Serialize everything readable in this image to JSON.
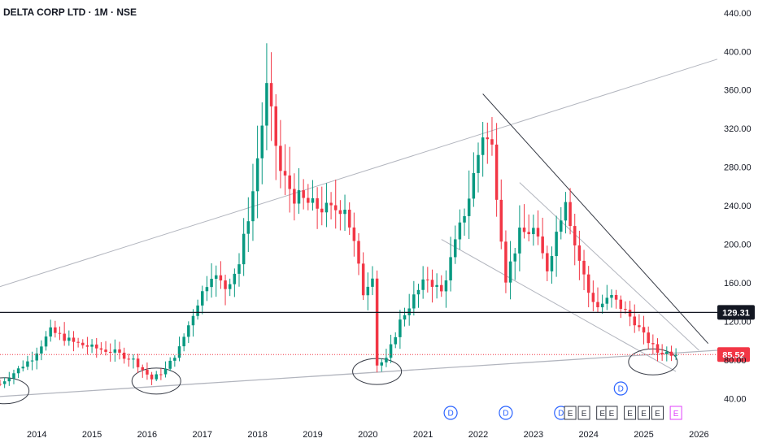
{
  "chart_data": {
    "type": "candlestick",
    "title": "DELTA CORP LTD · 1M · NSE",
    "symbol": "DELTA CORP LTD",
    "interval": "1M",
    "exchange": "NSE",
    "price_axis_labels": [
      "440.00",
      "400.00",
      "360.00",
      "320.00",
      "280.00",
      "240.00",
      "200.00",
      "160.00",
      "120.00",
      "80.00",
      "40.00"
    ],
    "price_axis_values": [
      440,
      400,
      360,
      320,
      280,
      240,
      200,
      160,
      120,
      80,
      40
    ],
    "ylim": [
      20,
      450
    ],
    "time_axis_labels": [
      "2014",
      "2015",
      "2016",
      "2017",
      "2018",
      "2019",
      "2020",
      "2021",
      "2022",
      "2023",
      "2024",
      "2025",
      "2026"
    ],
    "xlim": [
      "2013-05-01",
      "2026-05-01"
    ],
    "horizontal_level": {
      "value": 129.31,
      "label": "129.31",
      "color": "#131722"
    },
    "last_price": {
      "value": 85.52,
      "label": "85.52",
      "color": "#f23645"
    },
    "colors": {
      "up": "#089981",
      "down": "#f23645",
      "trendline": "#b2b5be",
      "dark_trendline": "#363a45",
      "dividend": "#2962ff",
      "earnings": "#363a45",
      "earnings_upcoming": "#e040fb"
    },
    "anchors": [
      [
        "2013-05",
        55
      ],
      [
        "2013-12",
        82
      ],
      [
        "2014-04",
        110
      ],
      [
        "2014-09",
        98
      ],
      [
        "2015-01",
        93
      ],
      [
        "2015-06",
        88
      ],
      [
        "2015-10",
        80
      ],
      [
        "2016-02",
        60
      ],
      [
        "2016-05",
        70
      ],
      [
        "2016-08",
        92
      ],
      [
        "2016-12",
        140
      ],
      [
        "2017-03",
        170
      ],
      [
        "2017-06",
        155
      ],
      [
        "2017-09",
        180
      ],
      [
        "2017-12",
        255
      ],
      [
        "2018-03",
        360
      ],
      [
        "2018-06",
        275
      ],
      [
        "2018-09",
        250
      ],
      [
        "2019-01",
        240
      ],
      [
        "2019-05",
        235
      ],
      [
        "2019-08",
        240
      ],
      [
        "2019-10",
        200
      ],
      [
        "2019-12",
        150
      ],
      [
        "2020-02",
        170
      ],
      [
        "2020-03",
        75
      ],
      [
        "2020-05",
        80
      ],
      [
        "2020-08",
        120
      ],
      [
        "2020-11",
        145
      ],
      [
        "2021-02",
        165
      ],
      [
        "2021-05",
        150
      ],
      [
        "2021-08",
        200
      ],
      [
        "2021-11",
        250
      ],
      [
        "2022-02",
        315
      ],
      [
        "2022-04",
        300
      ],
      [
        "2022-07",
        165
      ],
      [
        "2022-10",
        210
      ],
      [
        "2023-01",
        215
      ],
      [
        "2023-04",
        175
      ],
      [
        "2023-08",
        250
      ],
      [
        "2023-10",
        200
      ],
      [
        "2024-01",
        150
      ],
      [
        "2024-03",
        135
      ],
      [
        "2024-06",
        145
      ],
      [
        "2024-09",
        130
      ],
      [
        "2024-11",
        120
      ],
      [
        "2025-01",
        105
      ],
      [
        "2025-04",
        88
      ],
      [
        "2025-06",
        88
      ],
      [
        "2025-08",
        85.52
      ]
    ],
    "trendlines": [
      {
        "from": [
          "2013-05",
          42
        ],
        "to": [
          "2026-05",
          90
        ]
      },
      {
        "from": [
          "2013-05",
          156
        ],
        "to": [
          "2026-05",
          392
        ]
      },
      {
        "from": [
          "2021-05",
          205
        ],
        "to": [
          "2025-08",
          68
        ]
      },
      {
        "from": [
          "2022-10",
          264
        ],
        "to": [
          "2026-01",
          90
        ]
      },
      {
        "from": [
          "2022-02",
          356
        ],
        "to": [
          "2026-03",
          97
        ]
      }
    ],
    "circled_lows": [
      [
        "2013-06",
        48
      ],
      [
        "2016-03",
        58
      ],
      [
        "2020-03",
        68
      ],
      [
        "2025-03",
        78
      ]
    ],
    "dividend_markers": [
      {
        "date": "2021-07",
        "label": "D"
      },
      {
        "date": "2022-07",
        "label": "D"
      },
      {
        "date": "2023-07",
        "label": "D"
      },
      {
        "date": "2024-08",
        "label": "D",
        "row": "upper"
      }
    ],
    "earnings_markers": [
      {
        "date": "2023-09",
        "label": "E"
      },
      {
        "date": "2023-12",
        "label": "E"
      },
      {
        "date": "2024-04",
        "label": "E"
      },
      {
        "date": "2024-06",
        "label": "E"
      },
      {
        "date": "2024-10",
        "label": "E"
      },
      {
        "date": "2025-01",
        "label": "E"
      },
      {
        "date": "2025-04",
        "label": "E"
      },
      {
        "date": "2025-08",
        "label": "E",
        "upcoming": true
      }
    ]
  }
}
